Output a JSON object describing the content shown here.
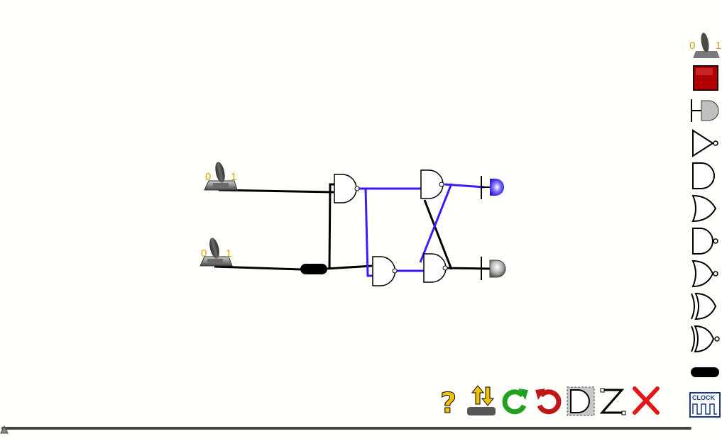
{
  "canvas": {
    "switches": [
      {
        "id": "switch-a",
        "off_label": "0",
        "on_label": "1",
        "state": "on"
      },
      {
        "id": "switch-b",
        "off_label": "0",
        "on_label": "1",
        "state": "on"
      }
    ],
    "leds": [
      {
        "id": "led-q",
        "state": "lit",
        "color": "#4a3aff"
      },
      {
        "id": "led-qbar",
        "state": "off",
        "color": "#9a9a9a"
      }
    ],
    "gates": [
      "nand",
      "nand",
      "nand",
      "nand"
    ],
    "wire_colors": {
      "high": "#3a1aff",
      "low": "#000000"
    }
  },
  "palette": {
    "items": [
      {
        "name": "toggle-switch",
        "off_label": "0",
        "on_label": "1"
      },
      {
        "name": "push-button"
      },
      {
        "name": "led"
      },
      {
        "name": "not-gate"
      },
      {
        "name": "and-gate"
      },
      {
        "name": "or-gate"
      },
      {
        "name": "nand-gate"
      },
      {
        "name": "nor-gate"
      },
      {
        "name": "xor-gate"
      },
      {
        "name": "xnor-gate"
      },
      {
        "name": "buffer"
      },
      {
        "name": "clock",
        "label": "CLOCK"
      }
    ]
  },
  "toolbar": {
    "help_label": "?",
    "buttons": [
      "help",
      "import-export",
      "redo",
      "undo",
      "select-gate",
      "draw-wire",
      "delete"
    ]
  },
  "slider": {
    "value": 0
  }
}
